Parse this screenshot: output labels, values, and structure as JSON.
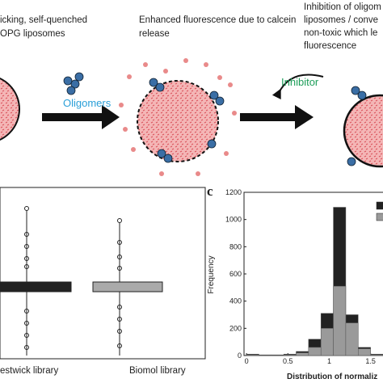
{
  "diagram": {
    "step1": [
      "icking, self-quenched",
      "OPG liposomes"
    ],
    "step2": [
      "Enhanced fluorescence due to calcein",
      "release"
    ],
    "step3": [
      "Inhibition of oligom",
      "liposomes / conve",
      "non-toxic which le",
      "fluorescence"
    ],
    "oligomers": "Oligomers",
    "inhibitor": "Inhibitor"
  },
  "boxplot": {
    "categories": [
      "estwick library",
      "Biomol library"
    ]
  },
  "chart_data": {
    "type": "histogram",
    "panel": "c",
    "ylabel": "Frequency",
    "xlabel": "Distribution of normaliz",
    "bins": [
      0,
      0.15,
      0.3,
      0.45,
      0.6,
      0.75,
      0.9,
      1.05,
      1.2,
      1.35,
      1.5,
      1.65
    ],
    "series": [
      {
        "color": "#222222",
        "values": [
          10,
          5,
          5,
          10,
          30,
          120,
          310,
          1090,
          300,
          60,
          10
        ]
      },
      {
        "color": "#9a9a9a",
        "values": [
          5,
          3,
          3,
          5,
          20,
          60,
          200,
          510,
          240,
          50,
          5
        ]
      }
    ],
    "xlim": [
      -0.03,
      1.65
    ],
    "ylim": [
      0,
      1200
    ],
    "xticks": [
      0,
      0.5,
      1,
      1.5
    ],
    "yticks": [
      0,
      200,
      400,
      600,
      800,
      1000,
      1200
    ]
  }
}
